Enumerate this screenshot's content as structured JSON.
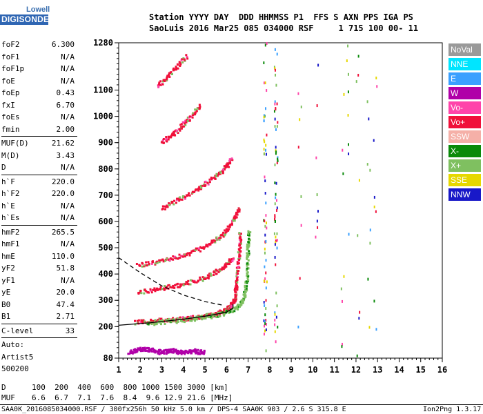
{
  "logo": {
    "top": "Lowell",
    "main": "DIGISONDE"
  },
  "header": {
    "line1": "Station YYYY DAY  DDD HHMMSS P1  FFS S AXN PPS IGA PS",
    "line2": "SaoLuis 2016 Mar25 085 034000 RSF     1 715 100 00- 11"
  },
  "params": [
    {
      "label": "foF2",
      "value": "6.300"
    },
    {
      "label": "foF1",
      "value": "N/A"
    },
    {
      "label": "foF1p",
      "value": "N/A"
    },
    {
      "label": "foE",
      "value": "N/A"
    },
    {
      "label": "foEp",
      "value": "0.43"
    },
    {
      "label": "fxI",
      "value": "6.70"
    },
    {
      "label": "foEs",
      "value": "N/A"
    },
    {
      "label": "fmin",
      "value": "2.00"
    },
    {
      "label": "MUF(D)",
      "value": "21.62"
    },
    {
      "label": "M(D)",
      "value": "3.43"
    },
    {
      "label": "D",
      "value": "N/A"
    },
    {
      "label": "h`F",
      "value": "220.0"
    },
    {
      "label": "h`F2",
      "value": "220.0"
    },
    {
      "label": "h`E",
      "value": "N/A"
    },
    {
      "label": "h`Es",
      "value": "N/A"
    },
    {
      "label": "hmF2",
      "value": "265.5"
    },
    {
      "label": "hmF1",
      "value": "N/A"
    },
    {
      "label": "hmE",
      "value": "110.0"
    },
    {
      "label": "yF2",
      "value": "51.8"
    },
    {
      "label": "yF1",
      "value": "N/A"
    },
    {
      "label": "yE",
      "value": "20.0"
    },
    {
      "label": "B0",
      "value": "47.4"
    },
    {
      "label": "B1",
      "value": "2.71"
    },
    {
      "label": "C-level",
      "value": "33"
    }
  ],
  "auto": {
    "line1": "Auto:",
    "line2": "Artist5",
    "line3": "500200"
  },
  "legend": [
    {
      "label": "NoVal",
      "color": "#9a9a9a"
    },
    {
      "label": "NNE",
      "color": "#00e5ff"
    },
    {
      "label": "E",
      "color": "#3aa0ff"
    },
    {
      "label": "W",
      "color": "#b000a8"
    },
    {
      "label": "Vo-",
      "color": "#ff44aa"
    },
    {
      "label": "Vo+",
      "color": "#f0103a"
    },
    {
      "label": "SSW",
      "color": "#f5b0a8"
    },
    {
      "label": "X-",
      "color": "#0a8a0a"
    },
    {
      "label": "X+",
      "color": "#7fc060"
    },
    {
      "label": "SSE",
      "color": "#e6d800"
    },
    {
      "label": "NNW",
      "color": "#1818c8"
    }
  ],
  "chart_data": {
    "type": "scatter",
    "title": "",
    "xlabel": "",
    "ylabel": "",
    "xlim": [
      1,
      16
    ],
    "ylim": [
      80,
      1280
    ],
    "x_ticks": [
      1,
      2,
      3,
      4,
      5,
      6,
      7,
      8,
      9,
      10,
      11,
      12,
      13,
      14,
      15,
      16
    ],
    "y_ticks": [
      80,
      200,
      300,
      400,
      500,
      600,
      700,
      800,
      900,
      1000,
      1100,
      1280
    ],
    "grid": false,
    "series": [
      {
        "name": "Vo+",
        "trace": [
          [
            1.8,
            216
          ],
          [
            2.5,
            220
          ],
          [
            3.5,
            226
          ],
          [
            4.5,
            233
          ],
          [
            5.3,
            243
          ],
          [
            5.9,
            258
          ],
          [
            6.2,
            275
          ],
          [
            6.4,
            310
          ],
          [
            6.5,
            380
          ],
          [
            6.6,
            480
          ],
          [
            6.65,
            560
          ]
        ]
      },
      {
        "name": "X+",
        "trace": [
          [
            2.3,
            212
          ],
          [
            3.5,
            220
          ],
          [
            4.8,
            232
          ],
          [
            5.8,
            248
          ],
          [
            6.5,
            268
          ],
          [
            6.8,
            300
          ],
          [
            6.95,
            380
          ],
          [
            7.0,
            480
          ],
          [
            7.05,
            560
          ]
        ]
      },
      {
        "name": "Vo+",
        "trace": [
          [
            1.9,
            432
          ],
          [
            3.0,
            450
          ],
          [
            4.0,
            470
          ],
          [
            5.0,
            500
          ],
          [
            5.8,
            545
          ],
          [
            6.3,
            600
          ],
          [
            6.6,
            650
          ]
        ]
      },
      {
        "name": "Vo+",
        "trace": [
          [
            1.9,
            330
          ],
          [
            3.0,
            345
          ],
          [
            4.0,
            360
          ],
          [
            5.0,
            385
          ],
          [
            5.8,
            420
          ],
          [
            6.3,
            460
          ]
        ]
      },
      {
        "name": "Vo+",
        "trace": [
          [
            3.0,
            650
          ],
          [
            4.0,
            690
          ],
          [
            5.0,
            740
          ],
          [
            5.8,
            790
          ],
          [
            6.3,
            840
          ]
        ]
      },
      {
        "name": "Vo+",
        "trace": [
          [
            3.0,
            900
          ],
          [
            3.6,
            935
          ],
          [
            4.2,
            985
          ],
          [
            4.8,
            1040
          ]
        ]
      },
      {
        "name": "Vo+",
        "trace": [
          [
            2.8,
            1110
          ],
          [
            3.5,
            1170
          ],
          [
            4.2,
            1230
          ]
        ]
      },
      {
        "name": "W",
        "trace": [
          [
            1.5,
            100
          ],
          [
            2.0,
            115
          ],
          [
            2.5,
            110
          ],
          [
            3.0,
            102
          ],
          [
            3.5,
            108
          ],
          [
            4.0,
            100
          ],
          [
            4.5,
            106
          ],
          [
            5.0,
            100
          ]
        ]
      }
    ],
    "model_profile": [
      [
        1.0,
        205
      ],
      [
        2.5,
        215
      ],
      [
        4.0,
        228
      ],
      [
        5.2,
        242
      ],
      [
        6.0,
        255
      ],
      [
        6.3,
        270
      ],
      [
        6.3,
        285
      ]
    ],
    "extrapolated_profile": [
      [
        1.0,
        462
      ],
      [
        2.0,
        405
      ],
      [
        3.0,
        355
      ],
      [
        4.0,
        320
      ],
      [
        5.0,
        295
      ],
      [
        5.8,
        282
      ]
    ],
    "scattered_columns": [
      7.8,
      8.3,
      9.4,
      10.2,
      11.4,
      11.6,
      12.1,
      12.6,
      12.9
    ]
  },
  "footer": {
    "row_d_label": "D",
    "row_d_values": "100  200  400  600  800 1000 1500 3000 [km]",
    "row_muf_label": "MUF",
    "row_muf_values": "6.6  6.7  7.1  7.6  8.4  9.6 12.9 21.6 [MHz]",
    "status": "SAA0K_2016085034000.RSF / 300fx256h 50 kHz 5.0 km / DPS-4 SAA0K 903 / 2.6 S 315.8 E",
    "version": "Ion2Png 1.3.17"
  }
}
